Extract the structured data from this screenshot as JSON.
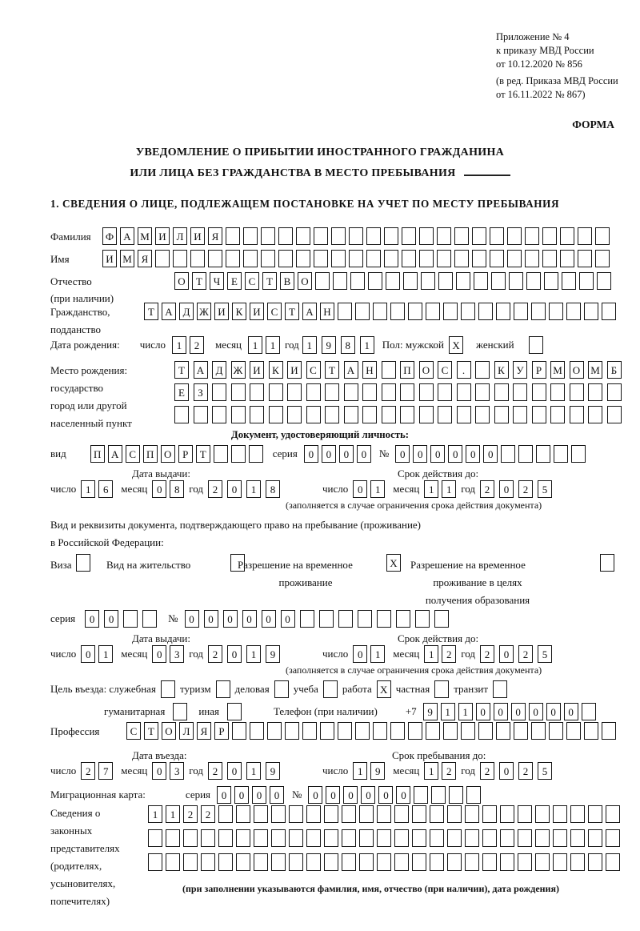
{
  "header": {
    "appendix": [
      "Приложение № 4",
      "к приказу МВД России",
      "от 10.12.2020 № 856"
    ],
    "appendix2": [
      "(в ред. Приказа МВД России",
      "от 16.11.2022 № 867)"
    ],
    "forma": "ФОРМА",
    "title1": "УВЕДОМЛЕНИЕ О ПРИБЫТИИ ИНОСТРАННОГО ГРАЖДАНИНА",
    "title2": "ИЛИ ЛИЦА БЕЗ ГРАЖДАНСТВА В МЕСТО ПРЕБЫВАНИЯ",
    "section1": "1. СВЕДЕНИЯ О ЛИЦЕ, ПОДЛЕЖАЩЕМ ПОСТАНОВКЕ НА УЧЕТ ПО МЕСТУ ПРЕБЫВАНИЯ"
  },
  "labels": {
    "surname": "Фамилия",
    "name": "Имя",
    "patronymic": "Отчество",
    "patronymic2": "(при наличии)",
    "citizenship": "Гражданство,",
    "citizenship2": "подданство",
    "birth_date": "Дата рождения:",
    "day": "число",
    "month": "месяц",
    "year": "год",
    "sex_male": "Пол: мужской",
    "sex_female": "женский",
    "birth_place": "Место рождения:",
    "birth_place2": "государство",
    "birth_place3": "город или другой",
    "birth_place4": "населенный пункт",
    "identity_doc": "Документ, удостоверяющий личность:",
    "doc_type": "вид",
    "series": "серия",
    "number": "№",
    "issue_date": "Дата выдачи:",
    "valid_until": "Срок действия до:",
    "valid_note": "(заполняется в случае ограничения срока действия документа)",
    "resident_doc1": "Вид и реквизиты документа, подтверждающего право на пребывание (проживание)",
    "resident_doc2": "в Российской Федерации:",
    "visa": "Виза",
    "residence_permit": "Вид на жительство",
    "temp_residence1": "Разрешение на временное",
    "temp_residence2": "проживание",
    "temp_edu1": "Разрешение на временное",
    "temp_edu2": "проживание в целях",
    "temp_edu3": "получения образования",
    "visit_purpose": "Цель въезда: служебная",
    "tourism": "туризм",
    "business": "деловая",
    "study": "учеба",
    "work": "работа",
    "private": "частная",
    "transit": "транзит",
    "humanitarian": "гуманитарная",
    "other": "иная",
    "phone": "Телефон (при наличии)",
    "phone_prefix": "+7",
    "profession": "Профессия",
    "entry_date": "Дата въезда:",
    "stay_until": "Срок пребывания до:",
    "migration_card": "Миграционная карта:",
    "representatives": [
      "Сведения о",
      "законных",
      "представителях",
      "(родителях,",
      "усыновителях,",
      "попечителях)"
    ],
    "representatives_note": "(при заполнении указываются фамилия, имя, отчество (при наличии), дата рождения)"
  },
  "fields": {
    "surname": {
      "count": 29,
      "values": [
        "Ф",
        "А",
        "М",
        "И",
        "Л",
        "И",
        "Я"
      ]
    },
    "name": {
      "count": 29,
      "values": [
        "И",
        "М",
        "Я"
      ]
    },
    "patronymic": {
      "count": 25,
      "values": [
        "О",
        "Т",
        "Ч",
        "Е",
        "С",
        "Т",
        "В",
        "О"
      ]
    },
    "citizenship": {
      "count": 27,
      "values": [
        "Т",
        "А",
        "Д",
        "Ж",
        "И",
        "К",
        "И",
        "С",
        "Т",
        "А",
        "Н"
      ]
    },
    "birth_day": {
      "count": 2,
      "values": [
        "1",
        "2"
      ]
    },
    "birth_month": {
      "count": 2,
      "values": [
        "1",
        "1"
      ]
    },
    "birth_year": {
      "count": 4,
      "values": [
        "1",
        "9",
        "8",
        "1"
      ]
    },
    "male_check": {
      "count": 1,
      "values": [
        "X"
      ]
    },
    "female_check": {
      "count": 1,
      "values": []
    },
    "birth_place1": {
      "count": 24,
      "values": [
        "Т",
        "А",
        "Д",
        "Ж",
        "И",
        "К",
        "И",
        "С",
        "Т",
        "А",
        "Н",
        "",
        "П",
        "О",
        "С",
        ".",
        "",
        "К",
        "У",
        "Р",
        "М",
        "О",
        "М",
        "Б"
      ]
    },
    "birth_place2": {
      "count": 24,
      "values": [
        "Е",
        "З"
      ]
    },
    "birth_place3": {
      "count": 24,
      "values": []
    },
    "doc_type": {
      "count": 10,
      "values": [
        "П",
        "А",
        "С",
        "П",
        "О",
        "Р",
        "Т"
      ]
    },
    "doc_series": {
      "count": 4,
      "values": [
        "0",
        "0",
        "0",
        "0"
      ]
    },
    "doc_number": {
      "count": 11,
      "values": [
        "0",
        "0",
        "0",
        "0",
        "0",
        "0"
      ]
    },
    "doc_issue_day": {
      "count": 2,
      "values": [
        "1",
        "6"
      ]
    },
    "doc_issue_month": {
      "count": 2,
      "values": [
        "0",
        "8"
      ]
    },
    "doc_issue_year": {
      "count": 4,
      "values": [
        "2",
        "0",
        "1",
        "8"
      ]
    },
    "doc_valid_day": {
      "count": 2,
      "values": [
        "0",
        "1"
      ]
    },
    "doc_valid_month": {
      "count": 2,
      "values": [
        "1",
        "1"
      ]
    },
    "doc_valid_year": {
      "count": 4,
      "values": [
        "2",
        "0",
        "2",
        "5"
      ]
    },
    "visa_check": {
      "count": 1,
      "values": []
    },
    "residence_permit_check": {
      "count": 1,
      "values": []
    },
    "temp_residence_check": {
      "count": 1,
      "values": [
        "X"
      ]
    },
    "temp_edu_check": {
      "count": 1,
      "values": []
    },
    "res_series": {
      "count": 4,
      "values": [
        "0",
        "0"
      ]
    },
    "res_number": {
      "count": 14,
      "values": [
        "0",
        "0",
        "0",
        "0",
        "0",
        "0"
      ]
    },
    "res_issue_day": {
      "count": 2,
      "values": [
        "0",
        "1"
      ]
    },
    "res_issue_month": {
      "count": 2,
      "values": [
        "0",
        "3"
      ]
    },
    "res_issue_year": {
      "count": 4,
      "values": [
        "2",
        "0",
        "1",
        "9"
      ]
    },
    "res_valid_day": {
      "count": 2,
      "values": [
        "0",
        "1"
      ]
    },
    "res_valid_month": {
      "count": 2,
      "values": [
        "1",
        "2"
      ]
    },
    "res_valid_year": {
      "count": 4,
      "values": [
        "2",
        "0",
        "2",
        "5"
      ]
    },
    "official_check": {
      "count": 1,
      "values": []
    },
    "tourism_check": {
      "count": 1,
      "values": []
    },
    "business_check": {
      "count": 1,
      "values": []
    },
    "study_check": {
      "count": 1,
      "values": []
    },
    "work_check": {
      "count": 1,
      "values": [
        "X"
      ]
    },
    "private_check": {
      "count": 1,
      "values": []
    },
    "transit_check": {
      "count": 1,
      "values": []
    },
    "humanitarian_check": {
      "count": 1,
      "values": []
    },
    "other_check": {
      "count": 1,
      "values": []
    },
    "phone": {
      "count": 10,
      "values": [
        "9",
        "1",
        "1",
        "0",
        "0",
        "0",
        "0",
        "0",
        "0"
      ]
    },
    "profession": {
      "count": 28,
      "values": [
        "С",
        "Т",
        "О",
        "Л",
        "Я",
        "Р"
      ]
    },
    "entry_day": {
      "count": 2,
      "values": [
        "2",
        "7"
      ]
    },
    "entry_month": {
      "count": 2,
      "values": [
        "0",
        "3"
      ]
    },
    "entry_year": {
      "count": 4,
      "values": [
        "2",
        "0",
        "1",
        "9"
      ]
    },
    "stay_day": {
      "count": 2,
      "values": [
        "1",
        "9"
      ]
    },
    "stay_month": {
      "count": 2,
      "values": [
        "1",
        "2"
      ]
    },
    "stay_year": {
      "count": 4,
      "values": [
        "2",
        "0",
        "2",
        "5"
      ]
    },
    "mig_series": {
      "count": 4,
      "values": [
        "0",
        "0",
        "0",
        "0"
      ]
    },
    "mig_number": {
      "count": 10,
      "values": [
        "0",
        "0",
        "0",
        "0",
        "0",
        "0"
      ]
    },
    "rep_row1": {
      "count": 27,
      "values": [
        "1",
        "1",
        "2",
        "2"
      ]
    },
    "rep_row2": {
      "count": 27,
      "values": []
    },
    "rep_row3": {
      "count": 27,
      "values": []
    }
  }
}
